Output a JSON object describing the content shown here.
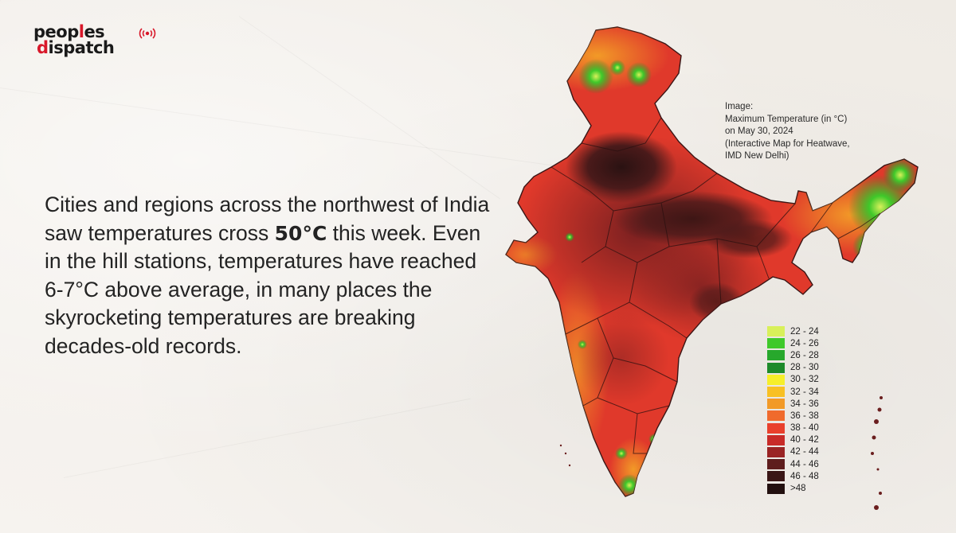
{
  "brand": {
    "line1_black_a": "peop",
    "line1_red": "l",
    "line1_black_b": "es",
    "line2_red": "d",
    "line2_black": "ispatch",
    "icon": "broadcast-icon"
  },
  "headline": {
    "text_before": "Cities and regions across the northwest of India saw temperatures cross ",
    "highlight": "50°C",
    "text_after": " this week. Even in the hill stations, temperatures have reached 6-7°C above average, in many places the skyrocketing temperatures are breaking decades-old records."
  },
  "caption": {
    "line1": "Image:",
    "line2": "Maximum Temperature (in °C)",
    "line3": "on May 30, 2024",
    "line4": "(Interactive Map for Heatwave,",
    "line5": "IMD New Delhi)"
  },
  "legend": [
    {
      "label": "22 - 24",
      "color": "#d8f05a"
    },
    {
      "label": "24 - 26",
      "color": "#3fc92a"
    },
    {
      "label": "26 - 28",
      "color": "#27a82c"
    },
    {
      "label": "28 - 30",
      "color": "#1d8a2a"
    },
    {
      "label": "30 - 32",
      "color": "#f6ef2a"
    },
    {
      "label": "32 - 34",
      "color": "#f8c023"
    },
    {
      "label": "34 - 36",
      "color": "#f29a27"
    },
    {
      "label": "36 - 38",
      "color": "#f06a2c"
    },
    {
      "label": "38 - 40",
      "color": "#e9402c"
    },
    {
      "label": "40 - 42",
      "color": "#c82b28"
    },
    {
      "label": "42 - 44",
      "color": "#9a2424"
    },
    {
      "label": "44 - 46",
      "color": "#5e1d1d"
    },
    {
      "label": "46 - 48",
      "color": "#3a1616"
    },
    {
      "label": ">48",
      "color": "#231010"
    }
  ],
  "colors": {
    "accent_red": "#d8182a",
    "text": "#232323"
  }
}
